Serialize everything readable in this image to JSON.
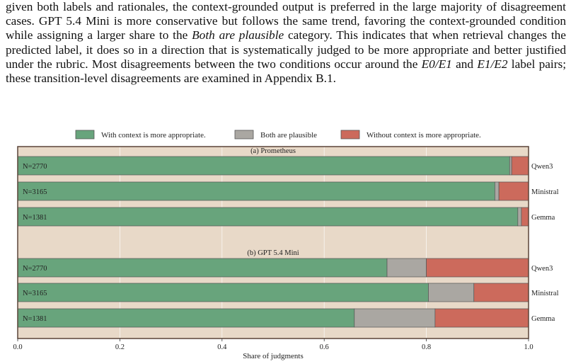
{
  "paragraph": {
    "text_1": "given both labels and rationales, the context-grounded output is preferred in the large majority of disagreement cases. GPT 5.4 Mini is more conservative but follows the same trend, favoring the context-grounded condition while assigning a larger share to the ",
    "emph": "Both are plausible",
    "text_2": " category. This indicates that when retrieval changes the predicted label, it does so in a direction that is systematically judged to be more appropriate and better justified under the rubric. Most disagreements between the two conditions occur around the ",
    "pair_1": "E0/E1",
    "text_3": " and ",
    "pair_2": "E1/E2",
    "text_4": " label pairs; these transition-level disagreements are examined in Appendix B.1."
  },
  "chart_data": {
    "type": "bar",
    "orientation": "horizontal",
    "stacked": true,
    "legend": [
      "With context is more appropriate.",
      "Both are plausible",
      "Without context is more appropriate."
    ],
    "legend_position": "top-center",
    "colors": {
      "with": "#68a47c",
      "both": "#aaa7a2",
      "without": "#cc6a5c",
      "panel_bg": "#e8d9c8",
      "border": "#5a4438"
    },
    "xlabel": "Share of judgments",
    "xlim": [
      0,
      1
    ],
    "xticks": [
      "0.0",
      "0.2",
      "0.4",
      "0.6",
      "0.8",
      "1.0"
    ],
    "grid": true,
    "panels": [
      {
        "title": "(a) Prometheus",
        "rows": [
          {
            "model": "Qwen3",
            "n_label": "N=2770",
            "with": 0.963,
            "both": 0.004,
            "without": 0.033
          },
          {
            "model": "Ministral",
            "n_label": "N=3165",
            "with": 0.934,
            "both": 0.008,
            "without": 0.058
          },
          {
            "model": "Gemma",
            "n_label": "N=1381",
            "with": 0.979,
            "both": 0.007,
            "without": 0.014
          }
        ]
      },
      {
        "title": "(b) GPT 5.4 Mini",
        "rows": [
          {
            "model": "Qwen3",
            "n_label": "N=2770",
            "with": 0.723,
            "both": 0.077,
            "without": 0.2
          },
          {
            "model": "Ministral",
            "n_label": "N=3165",
            "with": 0.804,
            "both": 0.089,
            "without": 0.107
          },
          {
            "model": "Gemma",
            "n_label": "N=1381",
            "with": 0.659,
            "both": 0.158,
            "without": 0.183
          }
        ]
      }
    ]
  }
}
